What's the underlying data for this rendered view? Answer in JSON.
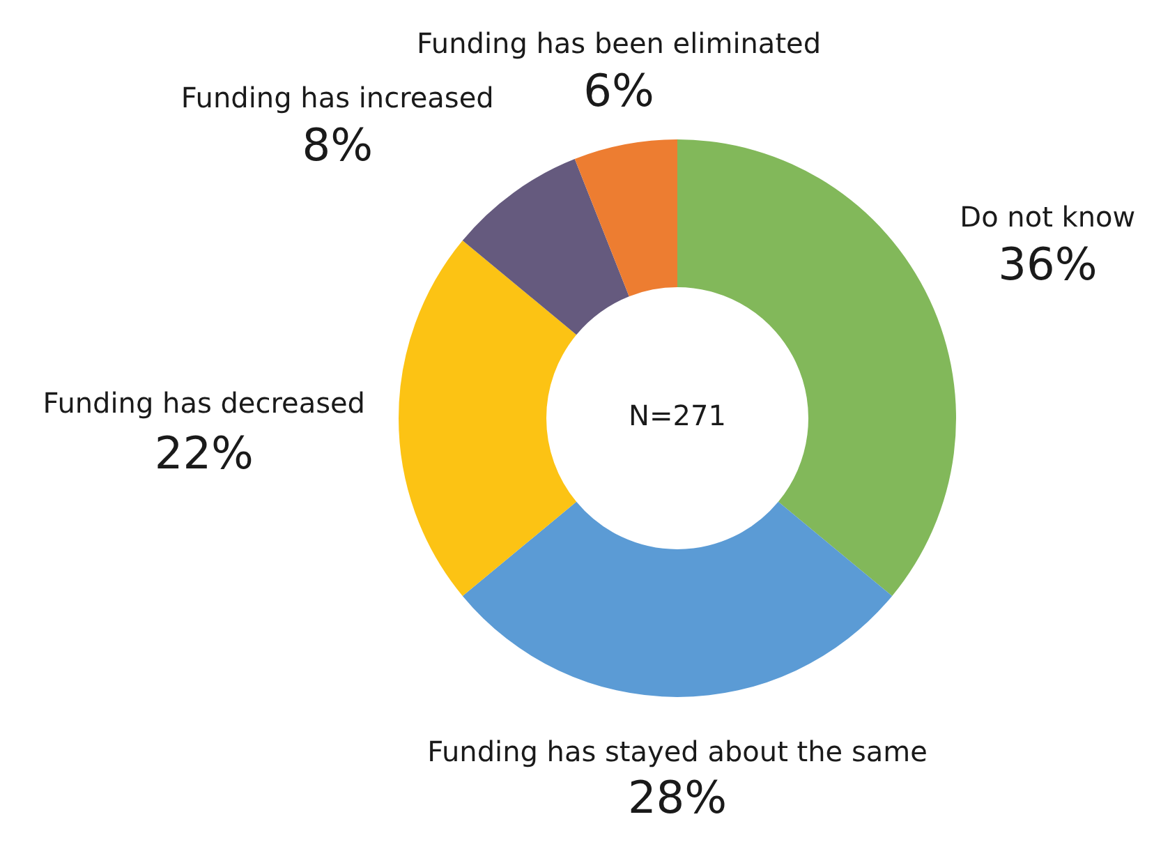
{
  "chart_data": {
    "type": "donut",
    "categories": [
      "Do not know",
      "Funding has stayed about the same",
      "Funding has decreased",
      "Funding has increased",
      "Funding has been eliminated"
    ],
    "values": [
      36,
      28,
      22,
      8,
      6
    ],
    "value_labels": [
      "36%",
      "28%",
      "22%",
      "8%",
      "6%"
    ],
    "colors": [
      "#82b85a",
      "#5b9bd5",
      "#fcc314",
      "#655a7e",
      "#ed7d31"
    ],
    "annotations": [
      "N=271"
    ]
  }
}
